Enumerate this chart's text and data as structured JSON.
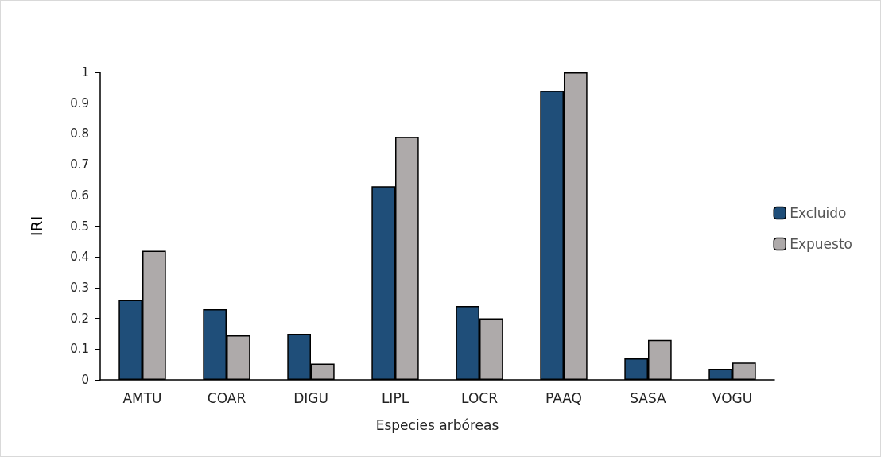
{
  "chart_data": {
    "type": "bar",
    "xlabel": "Especies arbóreas",
    "ylabel": "IRI",
    "categories": [
      "AMTU",
      "COAR",
      "DIGU",
      "LIPL",
      "LOCR",
      "PAAQ",
      "SASA",
      "VOGU"
    ],
    "series": [
      {
        "name": "Excluido",
        "color": "#1f4e79",
        "values": [
          0.26,
          0.23,
          0.15,
          0.63,
          0.24,
          0.94,
          0.07,
          0.036
        ]
      },
      {
        "name": "Expuesto",
        "color": "#aeaaaa",
        "values": [
          0.42,
          0.145,
          0.053,
          0.79,
          0.2,
          1.0,
          0.13,
          0.056
        ]
      }
    ],
    "ylim": [
      0,
      1
    ],
    "yticks": [
      0,
      0.1,
      0.2,
      0.3,
      0.4,
      0.5,
      0.6,
      0.7,
      0.8,
      0.9,
      1
    ],
    "grid": false,
    "legend": "right"
  }
}
